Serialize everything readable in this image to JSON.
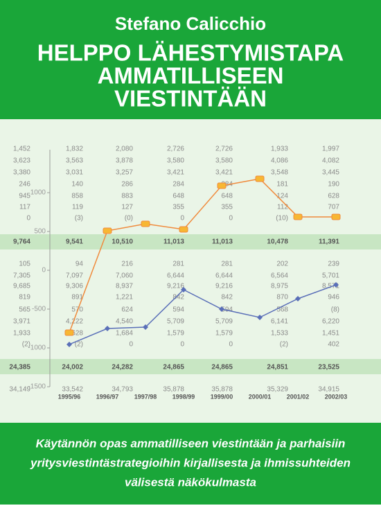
{
  "cover": {
    "author": "Stefano Calicchio",
    "title_lines": [
      "HELPPO LÄHESTYMISTAPA",
      "AMMATILLISEEN",
      "VIESTINTÄÄN"
    ],
    "subtitle_lines": [
      "Käytännön opas ammatilliseen viestintään ja parhaisiin",
      "yritysviestintästrategioihin kirjallisesta ja ihmissuhteiden",
      "välisestä näkökulmasta"
    ]
  },
  "background_table": {
    "columns": [
      [
        "1,452",
        "3,623",
        "3,380",
        "246",
        "945",
        "117",
        "0",
        "9,764",
        "105",
        "7,305",
        "9,685",
        "819",
        "565",
        "3,971",
        "1,933",
        "(2)",
        "24,385",
        "34,149"
      ],
      [
        "1,832",
        "3,563",
        "3,031",
        "140",
        "858",
        "119",
        "(3)",
        "9,541",
        "94",
        "7,097",
        "9,306",
        "891",
        "570",
        "4,222",
        "628",
        "(2)",
        "24,002",
        "33,542"
      ],
      [
        "2,080",
        "3,878",
        "3,257",
        "286",
        "883",
        "127",
        "(0)",
        "10,510",
        "216",
        "7,060",
        "8,937",
        "1,221",
        "624",
        "4,540",
        "1,684",
        "0",
        "24,282",
        "34,793"
      ],
      [
        "2,726",
        "3,580",
        "3,421",
        "284",
        "648",
        "355",
        "0",
        "11,013",
        "281",
        "6,644",
        "9,216",
        "842",
        "594",
        "5,709",
        "1,579",
        "0",
        "24,865",
        "35,878"
      ],
      [
        "2,726",
        "3,580",
        "3,421",
        "284",
        "648",
        "355",
        "0",
        "11,013",
        "281",
        "6,644",
        "9,216",
        "842",
        "594",
        "5,709",
        "1,579",
        "0",
        "24,865",
        "35,878"
      ],
      [
        "1,933",
        "4,086",
        "3,548",
        "181",
        "124",
        "112",
        "(10)",
        "10,478",
        "202",
        "6,564",
        "8,975",
        "870",
        "568",
        "6,141",
        "1,533",
        "(2)",
        "24,851",
        "35,329"
      ],
      [
        "1,997",
        "4,082",
        "3,445",
        "190",
        "628",
        "707",
        "3",
        "11,391",
        "239",
        "5,701",
        "8,571",
        "946",
        "(8)",
        "6,220",
        "1,451",
        "402",
        "23,525",
        "34,915"
      ]
    ]
  },
  "chart": {
    "type": "line",
    "categories": [
      "1995/96",
      "1996/97",
      "1997/98",
      "1998/99",
      "1999/00",
      "2000/01",
      "2001/02",
      "2002/03"
    ],
    "series": [
      {
        "color": "#f08a3c",
        "values": [
          -804,
          509,
          598,
          527,
          1089,
          1179,
          688,
          688
        ]
      },
      {
        "color": "#5a6fb8",
        "values": [
          -955,
          -750,
          -732,
          -250,
          -500,
          -607,
          -366,
          -188
        ]
      }
    ],
    "ylim": [
      -1500,
      1500
    ],
    "yticks": [
      -1500,
      -1000,
      -500,
      0,
      500,
      1000
    ]
  }
}
